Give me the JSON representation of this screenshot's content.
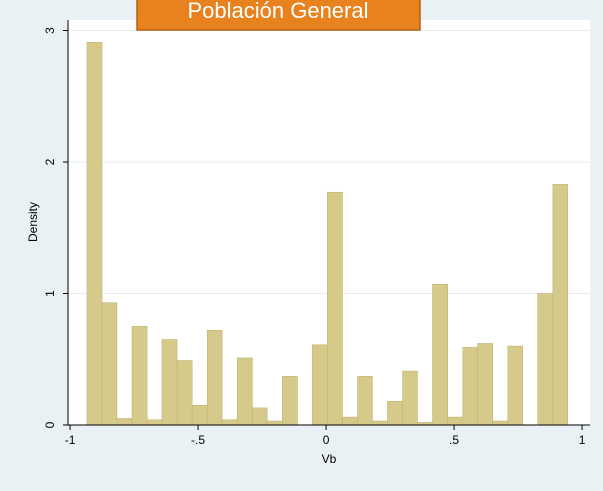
{
  "chart_data": {
    "type": "histogram",
    "title": "Población General",
    "xlabel": "Vb",
    "ylabel": "Density",
    "bins": [
      -0.934,
      -0.875,
      -0.817,
      -0.758,
      -0.699,
      -0.641,
      -0.582,
      -0.523,
      -0.464,
      -0.406,
      -0.347,
      -0.288,
      -0.23,
      -0.171,
      -0.112,
      -0.054,
      0.005,
      0.064,
      0.123,
      0.181,
      0.24,
      0.299,
      0.357,
      0.416,
      0.475,
      0.534,
      0.592,
      0.651,
      0.71,
      0.768,
      0.827,
      0.886,
      0.944
    ],
    "values": [
      2.91,
      0.93,
      0.05,
      0.75,
      0.04,
      0.65,
      0.49,
      0.15,
      0.72,
      0.04,
      0.51,
      0.13,
      0.03,
      0.37,
      0,
      0.61,
      1.77,
      0.06,
      0.37,
      0.03,
      0.18,
      0.41,
      0.02,
      1.07,
      0.06,
      0.59,
      0.62,
      0.03,
      0.6,
      0,
      1.0,
      1.83
    ],
    "color": "#d6ca8a",
    "xlim": [
      -1.008,
      1.031
    ],
    "ylim": [
      0,
      3.08
    ],
    "xticks": [
      {
        "value": -1,
        "label": "-1"
      },
      {
        "value": -0.5,
        "label": "-.5"
      },
      0,
      {
        "value": 0.5,
        "label": ".5"
      },
      1
    ],
    "yticks": [
      0,
      1,
      2,
      3
    ],
    "grid": true
  }
}
